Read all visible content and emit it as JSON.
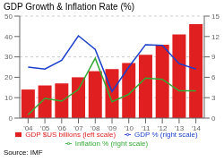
{
  "chart_data": {
    "type": "bar",
    "title": "GDP Growth & Inflation Rate (%)",
    "categories": [
      "'04",
      "'05",
      "'06",
      "'07",
      "'08",
      "'09",
      "'10",
      "'11",
      "'12",
      "'13",
      "'14"
    ],
    "series": [
      {
        "name": "GDP $US billions (left scale)",
        "type": "bar",
        "color": "#e02020",
        "values": [
          14,
          16,
          17,
          20,
          23,
          24,
          27,
          31,
          36,
          41,
          46
        ]
      },
      {
        "name": "GDP % (right scale)",
        "type": "line",
        "axis": "y2",
        "color": "#1a3fcc",
        "values": [
          7.5,
          7.2,
          8.5,
          12.1,
          10.1,
          3.9,
          7.5,
          10.8,
          10.7,
          8.0,
          7.2
        ]
      },
      {
        "name": "Inflation % (right scale)",
        "type": "line",
        "axis": "y2",
        "color": "#33aa33",
        "values": [
          0.5,
          2.9,
          2.5,
          4.2,
          8.8,
          2.4,
          3.5,
          5.9,
          5.7,
          4.0,
          4.0
        ]
      }
    ],
    "ylim": [
      0,
      50
    ],
    "yticks": [
      0,
      10,
      20,
      30,
      40,
      50
    ],
    "y2lim": [
      0,
      15
    ],
    "y2ticks": [
      0,
      3,
      6,
      9,
      12,
      15
    ],
    "grid": true,
    "legend": "bottom",
    "annotations": [
      "Source: IMF"
    ]
  }
}
